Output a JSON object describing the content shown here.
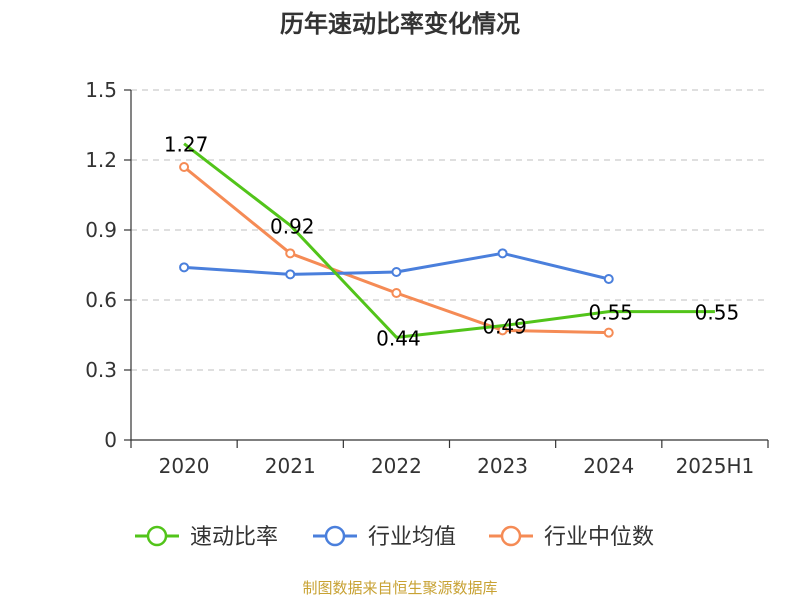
{
  "chart_data": {
    "type": "line",
    "title": "历年速动比率变化情况",
    "categories": [
      "2020",
      "2021",
      "2022",
      "2023",
      "2024",
      "2025H1"
    ],
    "ylim": [
      0,
      1.5
    ],
    "yticks": [
      0,
      0.3,
      0.6,
      0.9,
      1.2,
      1.5
    ],
    "ytick_labels": [
      "0",
      "0.3",
      "0.6",
      "0.9",
      "1.2",
      "1.5"
    ],
    "grid": true,
    "legend_position": "bottom",
    "series": [
      {
        "name": "速动比率",
        "color": "#52c41a",
        "values": [
          1.27,
          0.92,
          0.44,
          0.49,
          0.55,
          0.55
        ],
        "labels": [
          "1.27",
          "0.92",
          "0.44",
          "0.49",
          "0.55",
          "0.55"
        ],
        "show_markers": false
      },
      {
        "name": "行业均值",
        "color": "#4a7fdc",
        "values": [
          0.74,
          0.71,
          0.72,
          0.8,
          0.69,
          null
        ],
        "show_markers": true
      },
      {
        "name": "行业中位数",
        "color": "#f58b55",
        "values": [
          1.17,
          0.8,
          0.63,
          0.47,
          0.46,
          null
        ],
        "show_markers": true
      }
    ]
  },
  "source_note": "制图数据来自恒生聚源数据库"
}
